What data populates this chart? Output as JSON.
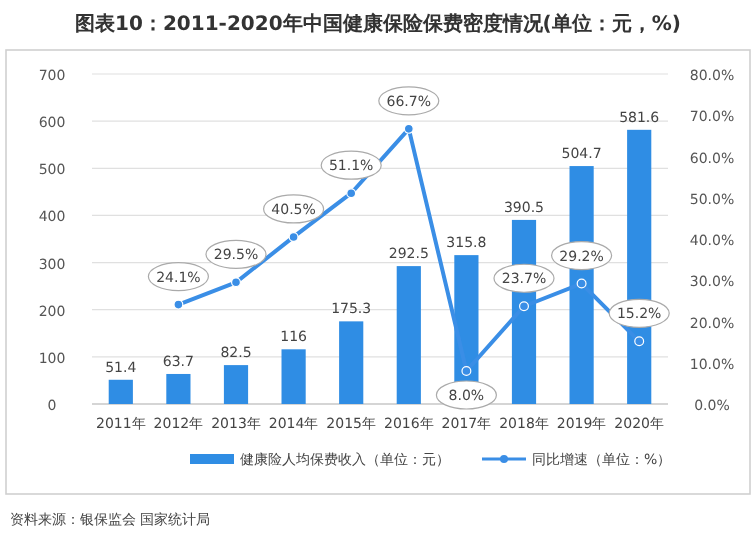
{
  "chart_data": {
    "type": "bar",
    "title": "图表10：2011-2020年中国健康保险保费密度情况(单位：元，%)",
    "categories": [
      "2011年",
      "2012年",
      "2013年",
      "2014年",
      "2015年",
      "2016年",
      "2017年",
      "2018年",
      "2019年",
      "2020年"
    ],
    "series": [
      {
        "name": "健康险人均保费收入（单位：元）",
        "color": "#2f8de4",
        "values": [
          51.4,
          63.7,
          82.5,
          116,
          175.3,
          292.5,
          315.8,
          390.5,
          504.7,
          581.6
        ],
        "value_labels": [
          "51.4",
          "63.7",
          "82.5",
          "116",
          "175.3",
          "292.5",
          "315.8",
          "390.5",
          "504.7",
          "581.6"
        ]
      },
      {
        "name": "同比增速（单位：%）",
        "type": "line",
        "axis": "y2",
        "color": "#3a8ee6",
        "values": [
          null,
          24.1,
          29.5,
          40.5,
          51.1,
          66.7,
          8.0,
          23.7,
          29.2,
          15.2
        ],
        "value_labels": [
          null,
          "24.1%",
          "29.5%",
          "40.5%",
          "51.1%",
          "66.7%",
          "8.0%",
          "23.7%",
          "29.2%",
          "15.2%"
        ]
      }
    ],
    "ylim": [
      0,
      700
    ],
    "yticks": [
      0,
      100,
      200,
      300,
      400,
      500,
      600,
      700
    ],
    "y2lim": [
      0,
      80
    ],
    "y2ticks": [
      {
        "value": 0,
        "label": "0.0%"
      },
      {
        "value": 10,
        "label": "10.0%"
      },
      {
        "value": 20,
        "label": "20.0%"
      },
      {
        "value": 30,
        "label": "30.0%"
      },
      {
        "value": 40,
        "label": "40.0%"
      },
      {
        "value": 50,
        "label": "50.0%"
      },
      {
        "value": 60,
        "label": "60.0%"
      },
      {
        "value": 70,
        "label": "70.0%"
      },
      {
        "value": 80,
        "label": "80.0%"
      }
    ],
    "grid": "y",
    "legend": "bottom",
    "marker": "circle",
    "annotations": [
      "资料来源：银保监会 国家统计局"
    ]
  }
}
